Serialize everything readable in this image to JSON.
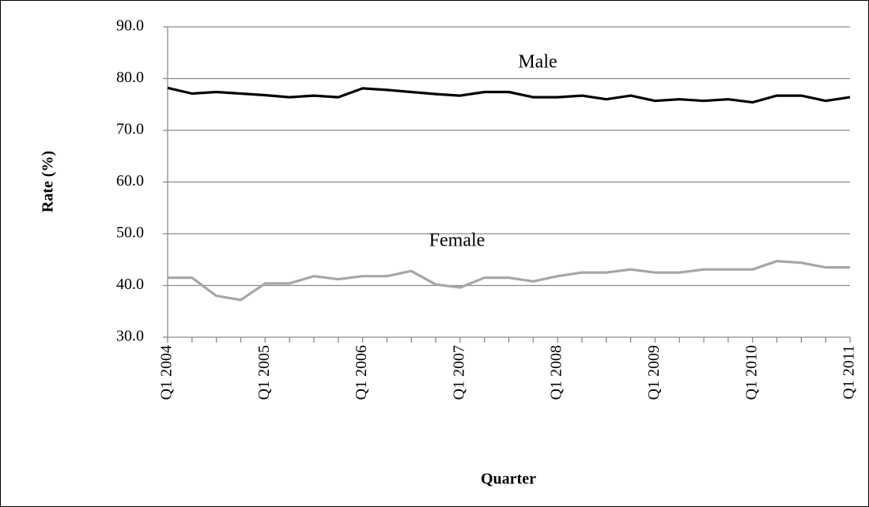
{
  "chart_data": {
    "type": "line",
    "x_label": "Quarter",
    "y_label": "Rate (%)",
    "categories": [
      "Q1 2004",
      null,
      null,
      null,
      "Q1 2005",
      null,
      null,
      null,
      "Q1 2006",
      null,
      null,
      null,
      "Q1 2007",
      null,
      null,
      null,
      "Q1 2008",
      null,
      null,
      null,
      "Q1 2009",
      null,
      null,
      null,
      "Q1 2010",
      null,
      null,
      null,
      "Q1 2011"
    ],
    "series": [
      {
        "name": "Male",
        "color": "#000000",
        "values": [
          78.2,
          77.1,
          77.4,
          77.1,
          76.8,
          76.4,
          76.7,
          76.4,
          78.1,
          77.8,
          77.4,
          77.0,
          76.7,
          77.4,
          77.4,
          76.4,
          76.4,
          76.7,
          76.0,
          76.7,
          75.7,
          76.0,
          75.7,
          76.0,
          75.4,
          76.7,
          76.7,
          75.7,
          76.4
        ]
      },
      {
        "name": "Female",
        "color": "#a6a6a6",
        "values": [
          41.5,
          41.5,
          38.0,
          37.2,
          40.4,
          40.4,
          41.8,
          41.2,
          41.8,
          41.8,
          42.8,
          40.2,
          39.6,
          41.5,
          41.5,
          40.8,
          41.8,
          42.5,
          42.5,
          43.1,
          42.5,
          42.5,
          43.1,
          43.1,
          43.1,
          44.7,
          44.4,
          43.5,
          43.5
        ]
      }
    ],
    "ylim": [
      30,
      90
    ],
    "yticks": [
      {
        "value": 30,
        "label": "30.0"
      },
      {
        "value": 40,
        "label": "40.0"
      },
      {
        "value": 50,
        "label": "50.0"
      },
      {
        "value": 60,
        "label": "60.0"
      },
      {
        "value": 70,
        "label": "70.0"
      },
      {
        "value": 80,
        "label": "80.0"
      },
      {
        "value": 90,
        "label": "90.0"
      }
    ],
    "grid": true
  }
}
